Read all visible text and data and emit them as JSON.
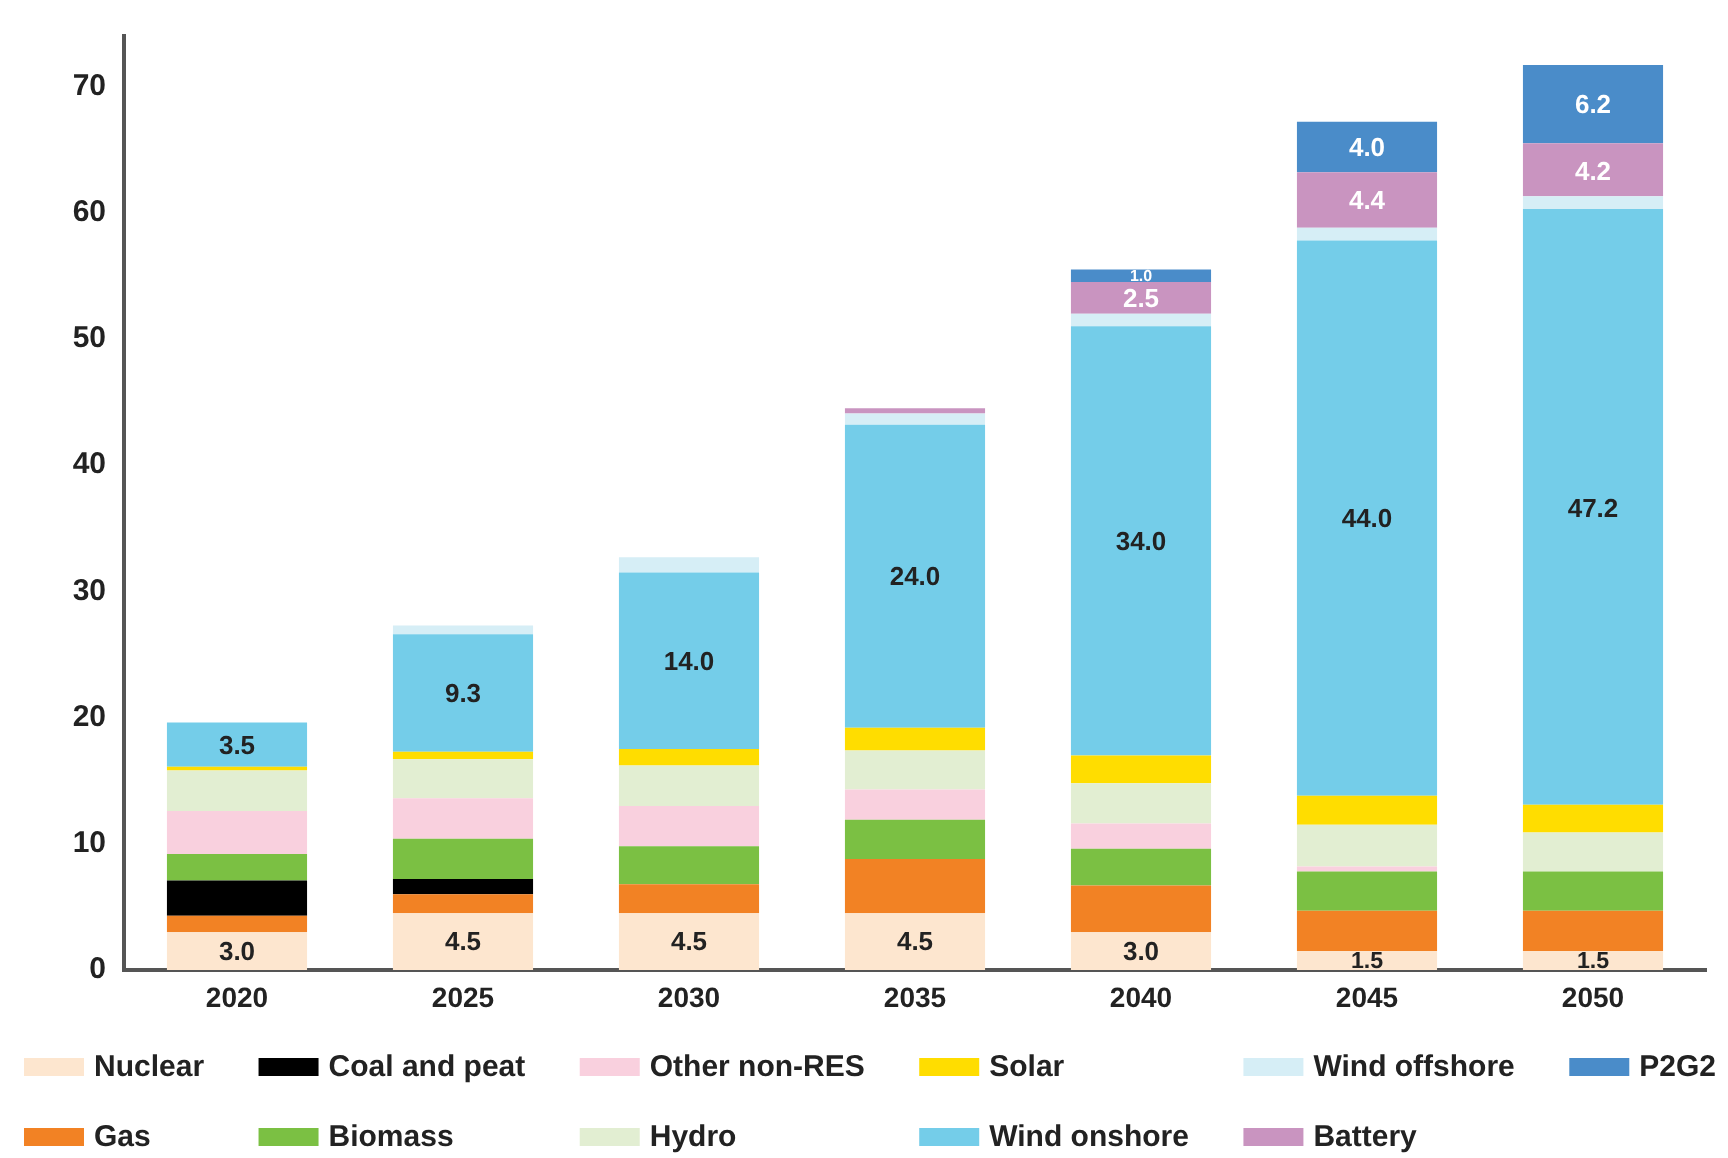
{
  "chart_data": {
    "type": "bar",
    "stacked": true,
    "legend": "bottom",
    "categories": [
      "2020",
      "2025",
      "2030",
      "2035",
      "2040",
      "2045",
      "2050"
    ],
    "ylim": [
      0,
      74
    ],
    "yticks": [
      0,
      10,
      20,
      30,
      40,
      50,
      60,
      70
    ],
    "series": [
      {
        "name": "Nuclear",
        "color": "#fde6cf",
        "values": [
          3.0,
          4.5,
          4.5,
          4.5,
          3.0,
          1.5,
          1.5
        ],
        "value_labels": [
          "3.0",
          "4.5",
          "4.5",
          "4.5",
          "3.0",
          "1.5",
          "1.5"
        ]
      },
      {
        "name": "Gas",
        "color": "#f28224",
        "values": [
          1.3,
          1.5,
          2.3,
          4.3,
          3.7,
          3.2,
          3.2
        ]
      },
      {
        "name": "Coal and peat",
        "color": "#000000",
        "values": [
          2.8,
          1.2,
          0,
          0,
          0,
          0,
          0
        ]
      },
      {
        "name": "Biomass",
        "color": "#7bc043",
        "values": [
          2.1,
          3.2,
          3.0,
          3.1,
          2.9,
          3.1,
          3.1
        ]
      },
      {
        "name": "Other non-RES",
        "color": "#f9d0de",
        "values": [
          3.4,
          3.2,
          3.2,
          2.4,
          2.0,
          0.4,
          0
        ]
      },
      {
        "name": "Hydro",
        "color": "#e2eed2",
        "values": [
          3.2,
          3.1,
          3.2,
          3.1,
          3.2,
          3.3,
          3.1
        ]
      },
      {
        "name": "Solar",
        "color": "#ffdd00",
        "values": [
          0.3,
          0.6,
          1.3,
          1.8,
          2.2,
          2.3,
          2.2
        ]
      },
      {
        "name": "Wind onshore",
        "color": "#74cde9",
        "values": [
          3.5,
          9.3,
          14.0,
          24.0,
          34.0,
          44.0,
          47.2
        ],
        "value_labels": [
          "3.5",
          "9.3",
          "14.0",
          "24.0",
          "34.0",
          "44.0",
          "47.2"
        ]
      },
      {
        "name": "Wind offshore",
        "color": "#d6eef6",
        "values": [
          0,
          0.7,
          1.2,
          0.9,
          1.0,
          1.0,
          1.0
        ]
      },
      {
        "name": "Battery",
        "color": "#c994c0",
        "values": [
          0,
          0,
          0,
          0.4,
          2.5,
          4.4,
          4.2
        ],
        "value_labels": [
          null,
          null,
          null,
          null,
          "2.5",
          "4.4",
          "4.2"
        ]
      },
      {
        "name": "P2G2",
        "color": "#4a8cc9",
        "values": [
          0,
          0,
          0,
          0,
          1.0,
          4.0,
          6.2
        ],
        "value_labels": [
          null,
          null,
          null,
          null,
          "1.0",
          "4.0",
          "6.2"
        ]
      }
    ]
  }
}
